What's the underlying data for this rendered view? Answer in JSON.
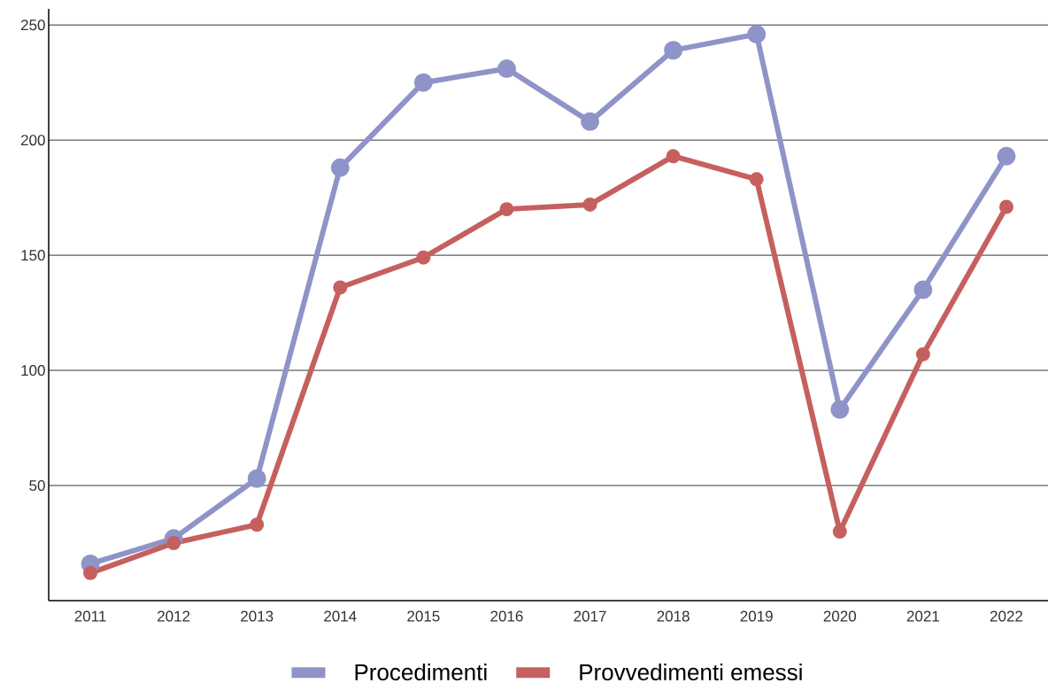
{
  "chart_data": {
    "type": "line",
    "categories": [
      "2011",
      "2012",
      "2013",
      "2014",
      "2015",
      "2016",
      "2017",
      "2018",
      "2019",
      "2020",
      "2021",
      "2022"
    ],
    "series": [
      {
        "name": "Procedimenti",
        "color": "#8e94c8",
        "values": [
          16,
          27,
          53,
          188,
          225,
          231,
          208,
          239,
          246,
          83,
          135,
          193
        ]
      },
      {
        "name": "Provvedimenti emessi",
        "color": "#c5605f",
        "values": [
          12,
          25,
          33,
          136,
          149,
          170,
          172,
          193,
          183,
          30,
          107,
          171
        ]
      }
    ],
    "ylim": [
      0,
      257
    ],
    "yticks": [
      50,
      100,
      150,
      200,
      250
    ],
    "grid": "y",
    "legend": "bottom",
    "marker": "circle",
    "line_style": "solid"
  }
}
